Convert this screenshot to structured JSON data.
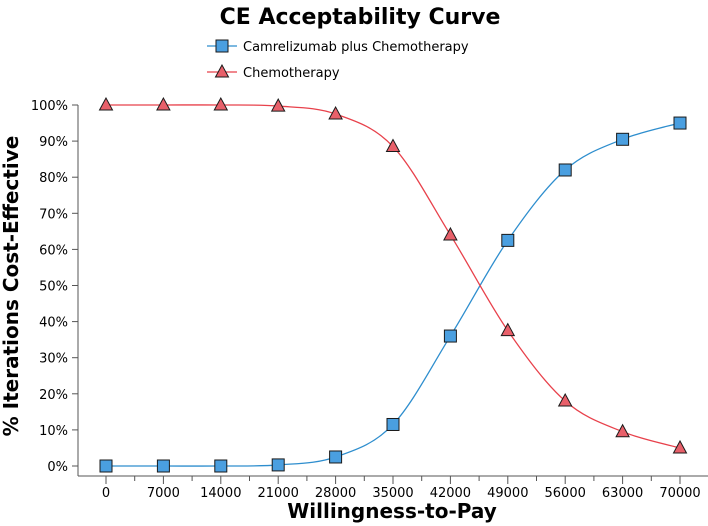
{
  "chart_data": {
    "type": "line",
    "title": "CE Acceptability Curve",
    "xlabel": "Willingness-to-Pay",
    "ylabel": "% Iterations Cost-Effective",
    "x": [
      0,
      7000,
      14000,
      21000,
      28000,
      35000,
      42000,
      49000,
      56000,
      63000,
      70000
    ],
    "x_tick_labels": [
      "0",
      "7000",
      "14000",
      "21000",
      "28000",
      "35000",
      "42000",
      "49000",
      "56000",
      "63000",
      "70000"
    ],
    "y_tick_labels": [
      "0%",
      "10%",
      "20%",
      "30%",
      "40%",
      "50%",
      "60%",
      "70%",
      "80%",
      "90%",
      "100%"
    ],
    "ylim": [
      0,
      100
    ],
    "grid": false,
    "legend_position": "top-center",
    "series": [
      {
        "name": "Camrelizumab plus Chemotherapy",
        "marker": "square",
        "color": "#2e8ece",
        "fill": "#4a9fe0",
        "x": [
          0,
          7000,
          14000,
          21000,
          28000,
          35000,
          42000,
          49000,
          56000,
          63000,
          70000
        ],
        "values": [
          0,
          0,
          0,
          0.3,
          2.5,
          11.5,
          36,
          62.5,
          82,
          90.5,
          95
        ]
      },
      {
        "name": "Chemotherapy",
        "marker": "triangle",
        "color": "#e8414b",
        "fill": "#e8606a",
        "x": [
          0,
          7000,
          14000,
          21000,
          28000,
          35000,
          42000,
          49000,
          56000,
          63000,
          70000
        ],
        "values": [
          100,
          100,
          100,
          99.7,
          97.5,
          88.5,
          64,
          37.5,
          18,
          9.5,
          5
        ]
      }
    ]
  }
}
